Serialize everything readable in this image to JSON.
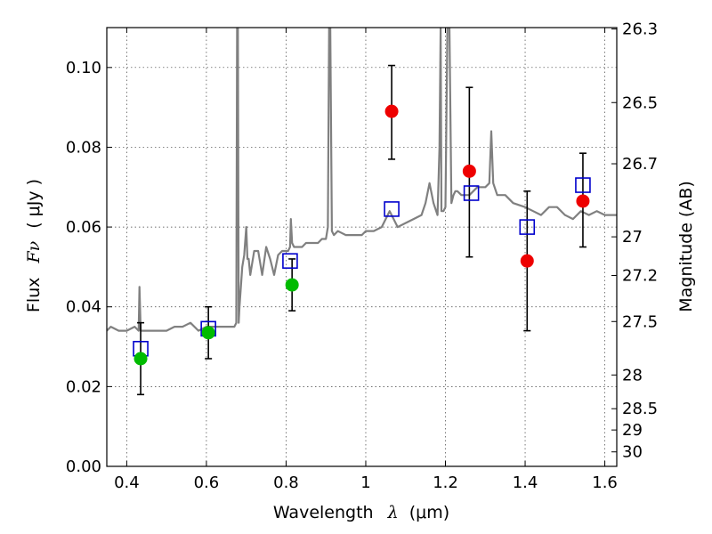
{
  "chart_data": {
    "type": "scatter",
    "xlabel": "Wavelength",
    "xlabel_symbol": "λ",
    "xlabel_unit": "(μm)",
    "ylabel_left": "Flux",
    "ylabel_left_symbol": "Fν",
    "ylabel_left_unit": "( μJy )",
    "ylabel_right": "Magnitude (AB)",
    "xlim": [
      0.35,
      1.63
    ],
    "ylim": [
      0.0,
      0.11
    ],
    "grid": true,
    "x_ticks": [
      {
        "value": 0.4,
        "label": "0.4"
      },
      {
        "value": 0.6,
        "label": "0.6"
      },
      {
        "value": 0.8,
        "label": "0.8"
      },
      {
        "value": 1.0,
        "label": "1"
      },
      {
        "value": 1.2,
        "label": "1.2"
      },
      {
        "value": 1.4,
        "label": "1.4"
      },
      {
        "value": 1.6,
        "label": "1.6"
      }
    ],
    "y_ticks": [
      {
        "value": 0.0,
        "label": "0.00"
      },
      {
        "value": 0.02,
        "label": "0.02"
      },
      {
        "value": 0.04,
        "label": "0.04"
      },
      {
        "value": 0.06,
        "label": "0.06"
      },
      {
        "value": 0.08,
        "label": "0.08"
      },
      {
        "value": 0.1,
        "label": "0.10"
      }
    ],
    "right_ticks": [
      {
        "mag": 26.3,
        "label": "26.3"
      },
      {
        "mag": 26.5,
        "label": "26.5"
      },
      {
        "mag": 26.7,
        "label": "26.7"
      },
      {
        "mag": 27.0,
        "label": "27"
      },
      {
        "mag": 27.2,
        "label": "27.2"
      },
      {
        "mag": 27.5,
        "label": "27.5"
      },
      {
        "mag": 28.0,
        "label": "28"
      },
      {
        "mag": 28.5,
        "label": "28.5"
      },
      {
        "mag": 29.0,
        "label": "29"
      },
      {
        "mag": 30.0,
        "label": "30"
      }
    ],
    "colors": {
      "spectrum": "#808080",
      "model_square": "#0000cc",
      "green_point": "#00bb00",
      "red_point": "#ee0000",
      "errorbar": "#000000"
    },
    "series": [
      {
        "name": "spectrum",
        "kind": "line",
        "x": [
          0.35,
          0.36,
          0.38,
          0.4,
          0.42,
          0.43,
          0.432,
          0.435,
          0.44,
          0.46,
          0.48,
          0.5,
          0.52,
          0.54,
          0.56,
          0.58,
          0.6,
          0.62,
          0.64,
          0.66,
          0.67,
          0.675,
          0.677,
          0.679,
          0.681,
          0.683,
          0.69,
          0.695,
          0.7,
          0.703,
          0.706,
          0.71,
          0.72,
          0.73,
          0.74,
          0.75,
          0.76,
          0.77,
          0.78,
          0.79,
          0.8,
          0.805,
          0.81,
          0.812,
          0.815,
          0.82,
          0.83,
          0.84,
          0.85,
          0.86,
          0.87,
          0.88,
          0.89,
          0.9,
          0.905,
          0.908,
          0.911,
          0.915,
          0.92,
          0.93,
          0.95,
          0.97,
          0.99,
          1.0,
          1.02,
          1.04,
          1.06,
          1.08,
          1.1,
          1.12,
          1.14,
          1.15,
          1.16,
          1.17,
          1.18,
          1.185,
          1.188,
          1.19,
          1.195,
          1.2,
          1.205,
          1.21,
          1.215,
          1.22,
          1.225,
          1.23,
          1.24,
          1.26,
          1.28,
          1.3,
          1.31,
          1.315,
          1.32,
          1.33,
          1.35,
          1.37,
          1.4,
          1.42,
          1.44,
          1.46,
          1.48,
          1.5,
          1.52,
          1.54,
          1.56,
          1.58,
          1.6,
          1.62,
          1.63
        ],
        "y": [
          0.034,
          0.035,
          0.034,
          0.034,
          0.035,
          0.034,
          0.045,
          0.034,
          0.034,
          0.034,
          0.034,
          0.034,
          0.035,
          0.035,
          0.036,
          0.034,
          0.035,
          0.035,
          0.035,
          0.035,
          0.035,
          0.036,
          0.11,
          0.11,
          0.036,
          0.04,
          0.05,
          0.053,
          0.06,
          0.052,
          0.052,
          0.048,
          0.054,
          0.054,
          0.048,
          0.055,
          0.052,
          0.048,
          0.053,
          0.054,
          0.054,
          0.054,
          0.055,
          0.062,
          0.056,
          0.055,
          0.055,
          0.055,
          0.056,
          0.056,
          0.056,
          0.056,
          0.057,
          0.057,
          0.06,
          0.11,
          0.11,
          0.059,
          0.058,
          0.059,
          0.058,
          0.058,
          0.058,
          0.059,
          0.059,
          0.06,
          0.064,
          0.06,
          0.061,
          0.062,
          0.063,
          0.066,
          0.071,
          0.066,
          0.063,
          0.08,
          0.11,
          0.064,
          0.064,
          0.065,
          0.11,
          0.11,
          0.066,
          0.068,
          0.069,
          0.069,
          0.068,
          0.068,
          0.07,
          0.07,
          0.071,
          0.084,
          0.071,
          0.068,
          0.068,
          0.066,
          0.065,
          0.064,
          0.063,
          0.065,
          0.065,
          0.063,
          0.062,
          0.064,
          0.063,
          0.064,
          0.063,
          0.063,
          0.063
        ]
      },
      {
        "name": "model_fluxes",
        "kind": "square",
        "x": [
          0.435,
          0.605,
          0.81,
          1.065,
          1.265,
          1.405,
          1.545
        ],
        "y": [
          0.0295,
          0.0345,
          0.0515,
          0.0645,
          0.0685,
          0.06,
          0.0705
        ]
      },
      {
        "name": "observed_green",
        "kind": "point",
        "x": [
          0.435,
          0.605,
          0.815
        ],
        "y": [
          0.027,
          0.0335,
          0.0455
        ],
        "yerr_low": [
          0.018,
          0.027,
          0.039
        ],
        "yerr_high": [
          0.036,
          0.04,
          0.052
        ]
      },
      {
        "name": "observed_red",
        "kind": "point",
        "x": [
          1.065,
          1.26,
          1.405,
          1.545
        ],
        "y": [
          0.089,
          0.074,
          0.0515,
          0.0665
        ],
        "yerr_low": [
          0.077,
          0.0525,
          0.034,
          0.055
        ],
        "yerr_high": [
          0.1005,
          0.095,
          0.069,
          0.0785
        ]
      }
    ]
  }
}
